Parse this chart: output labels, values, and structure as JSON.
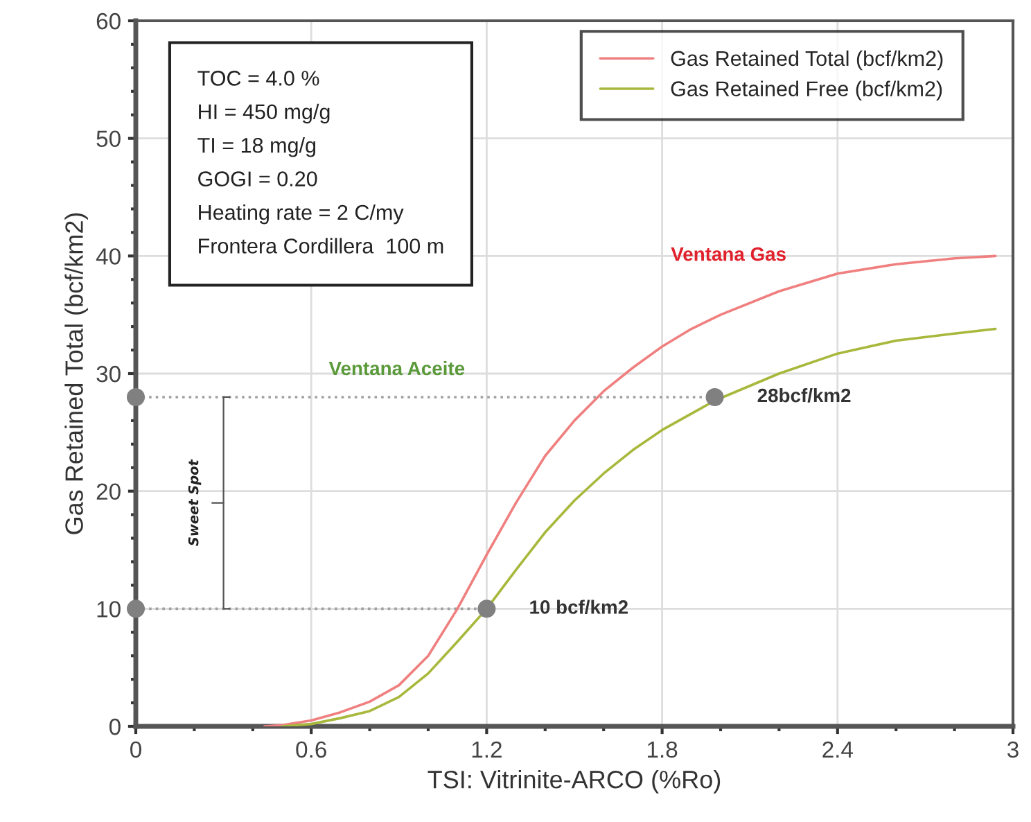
{
  "chart_data": {
    "type": "line",
    "xlabel": "TSI: Vitrinite-ARCO (%Ro)",
    "ylabel": "Gas Retained Total (bcf/km2)",
    "xlim": [
      0,
      3
    ],
    "xticks": [
      0,
      0.6,
      1.2,
      1.8,
      2.4,
      3
    ],
    "ylim": [
      0,
      60
    ],
    "yticks": [
      0,
      10,
      20,
      30,
      40,
      50,
      60
    ],
    "grid": true,
    "legend": "top right",
    "marker": "none",
    "line_style": "solid",
    "series": [
      {
        "name": "Gas Retained Total (bcf/km2)",
        "color": "#f08080",
        "x": [
          0.44,
          0.5,
          0.6,
          0.7,
          0.8,
          0.9,
          1.0,
          1.1,
          1.2,
          1.3,
          1.4,
          1.5,
          1.6,
          1.7,
          1.8,
          1.9,
          2.0,
          2.2,
          2.4,
          2.6,
          2.8,
          2.94
        ],
        "values": [
          0,
          0.1,
          0.5,
          1.2,
          2.1,
          3.5,
          6,
          10,
          14.6,
          19,
          23,
          26,
          28.5,
          30.5,
          32.3,
          33.8,
          35,
          37,
          38.5,
          39.3,
          39.8,
          40
        ]
      },
      {
        "name": "Gas Retained Free (bcf/km2)",
        "color": "#a8b83c",
        "x": [
          0.5,
          0.6,
          0.7,
          0.8,
          0.9,
          1.0,
          1.1,
          1.2,
          1.3,
          1.4,
          1.5,
          1.6,
          1.7,
          1.8,
          1.98,
          2.2,
          2.4,
          2.6,
          2.8,
          2.94
        ],
        "values": [
          0,
          0.2,
          0.7,
          1.3,
          2.5,
          4.5,
          7.2,
          10,
          13.3,
          16.5,
          19.2,
          21.5,
          23.5,
          25.2,
          27.7,
          30,
          31.7,
          32.8,
          33.4,
          33.8
        ]
      },
      {
        "type": "line",
        "color": "#a0a0a0",
        "line_style": "dotted",
        "x": [
          0,
          1.98
        ],
        "values": [
          28,
          28
        ]
      },
      {
        "type": "line",
        "color": "#a0a0a0",
        "line_style": "dotted",
        "x": [
          0,
          1.2
        ],
        "values": [
          10,
          10
        ]
      },
      {
        "type": "scatter",
        "color": "#808080",
        "marker": "circle",
        "x": [
          0,
          0,
          1.2,
          1.98
        ],
        "values": [
          28,
          10,
          10,
          28
        ]
      }
    ],
    "annotations": [
      "Ventana Gas",
      "Ventana Aceite",
      "28bcf/km2",
      "10 bcf/km2",
      "Sweet Spot",
      "TOC = 4.0 %",
      "HI = 450 mg/g",
      "TI = 18 mg/g",
      "GOGI = 0.20",
      "Heating rate = 2 C/my",
      "Frontera Cordillera  100 m"
    ]
  }
}
